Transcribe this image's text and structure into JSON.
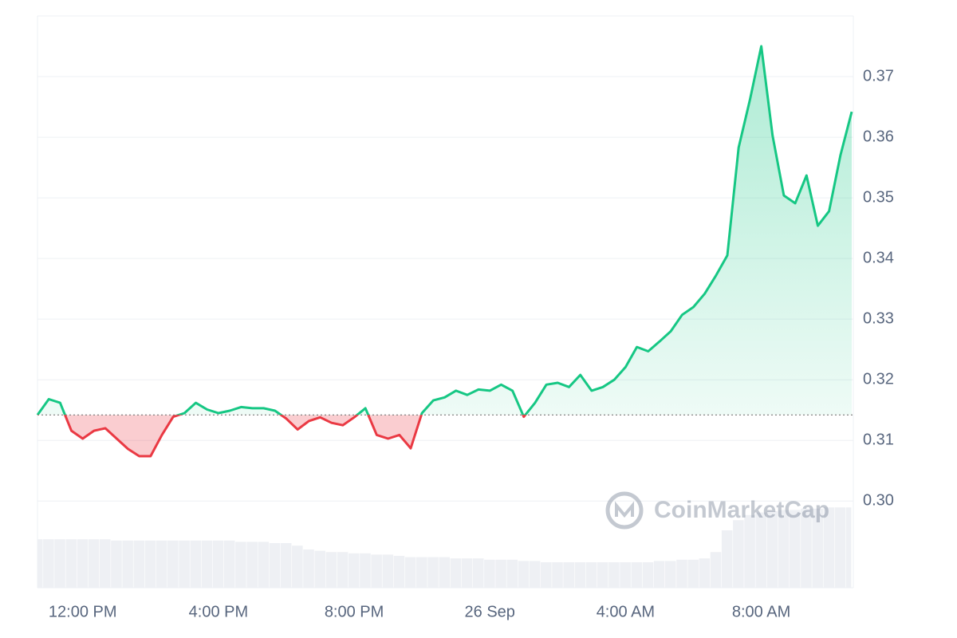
{
  "chart_data": {
    "type": "line",
    "watermark": "CoinMarketCap",
    "categories": [
      null,
      null,
      null,
      null,
      "12:00 PM",
      null,
      null,
      null,
      null,
      null,
      null,
      null,
      null,
      null,
      null,
      null,
      "4:00 PM",
      null,
      null,
      null,
      null,
      null,
      null,
      null,
      null,
      null,
      null,
      null,
      "8:00 PM",
      null,
      null,
      null,
      null,
      null,
      null,
      null,
      null,
      null,
      null,
      null,
      "26 Sep",
      null,
      null,
      null,
      null,
      null,
      null,
      null,
      null,
      null,
      null,
      null,
      "4:00 AM",
      null,
      null,
      null,
      null,
      null,
      null,
      null,
      null,
      null,
      null,
      null,
      "8:00 AM",
      null,
      null,
      null,
      null,
      null,
      null,
      null,
      null
    ],
    "baseline": 0.3142,
    "up_color": "#16c784",
    "down_color": "#ea3943",
    "series": [
      {
        "name": "Price",
        "values": [
          0.3142,
          0.3168,
          0.3162,
          0.3116,
          0.3103,
          0.3116,
          0.312,
          0.3103,
          0.3086,
          0.3074,
          0.3074,
          0.3109,
          0.3139,
          0.3145,
          0.3162,
          0.3151,
          0.3145,
          0.3149,
          0.3155,
          0.3153,
          0.3153,
          0.3149,
          0.3136,
          0.3118,
          0.3132,
          0.3138,
          0.3129,
          0.3125,
          0.3138,
          0.3153,
          0.3109,
          0.3103,
          0.3109,
          0.3087,
          0.3145,
          0.3166,
          0.3171,
          0.3182,
          0.3175,
          0.3184,
          0.3182,
          0.3192,
          0.3182,
          0.3139,
          0.3162,
          0.3192,
          0.3195,
          0.3188,
          0.3208,
          0.3182,
          0.3188,
          0.32,
          0.3221,
          0.3254,
          0.3247,
          0.3263,
          0.328,
          0.3307,
          0.332,
          0.3342,
          0.3372,
          0.3405,
          0.3583,
          0.3662,
          0.375,
          0.3603,
          0.3504,
          0.3491,
          0.3537,
          0.3454,
          0.3478,
          0.357,
          0.3642
        ]
      },
      {
        "name": "Volume",
        "axis": "y2",
        "color": "#eef0f4",
        "values": [
          38,
          38,
          38,
          38,
          38,
          38,
          38,
          37,
          37,
          37,
          37,
          37,
          37,
          37,
          37,
          37,
          37,
          37,
          36,
          36,
          36,
          35,
          35,
          33,
          30,
          29,
          28,
          28,
          27,
          27,
          26,
          26,
          25,
          24,
          24,
          24,
          24,
          23,
          23,
          23,
          22,
          22,
          22,
          21,
          21,
          20,
          20,
          20,
          20,
          20,
          20,
          20,
          20,
          20,
          20,
          21,
          21,
          22,
          22,
          23,
          28,
          45,
          53,
          57,
          59,
          60,
          61,
          61,
          62,
          62,
          63,
          63,
          63
        ]
      }
    ],
    "ylim": [
      0.2857,
      0.38
    ],
    "yticks": [
      {
        "value": 0.3,
        "label": "0.30"
      },
      0.31,
      0.32,
      0.33,
      0.34,
      0.35,
      0.36,
      0.37
    ],
    "y2lim": [
      0,
      100
    ],
    "grid": true
  }
}
